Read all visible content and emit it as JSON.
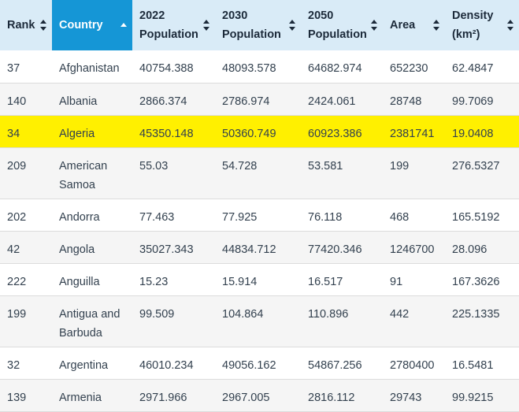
{
  "headers": {
    "rank": "Rank",
    "country": "Country",
    "pop2022_a": "2022",
    "pop2022_b": "Population",
    "pop2030_a": "2030",
    "pop2030_b": "Population",
    "pop2050_a": "2050",
    "pop2050_b": "Population",
    "area": "Area",
    "density_a": "Density",
    "density_b": "(km²)"
  },
  "rows": [
    {
      "rank": "37",
      "country": "Afghanistan",
      "pop2022": "40754.388",
      "pop2030": "48093.578",
      "pop2050": "64682.974",
      "area": "652230",
      "density": "62.4847"
    },
    {
      "rank": "140",
      "country": "Albania",
      "pop2022": "2866.374",
      "pop2030": "2786.974",
      "pop2050": "2424.061",
      "area": "28748",
      "density": "99.7069"
    },
    {
      "rank": "34",
      "country": "Algeria",
      "pop2022": "45350.148",
      "pop2030": "50360.749",
      "pop2050": "60923.386",
      "area": "2381741",
      "density": "19.0408"
    },
    {
      "rank": "209",
      "country": "American Samoa",
      "pop2022": "55.03",
      "pop2030": "54.728",
      "pop2050": "53.581",
      "area": "199",
      "density": "276.5327"
    },
    {
      "rank": "202",
      "country": "Andorra",
      "pop2022": "77.463",
      "pop2030": "77.925",
      "pop2050": "76.118",
      "area": "468",
      "density": "165.5192"
    },
    {
      "rank": "42",
      "country": "Angola",
      "pop2022": "35027.343",
      "pop2030": "44834.712",
      "pop2050": "77420.346",
      "area": "1246700",
      "density": "28.096"
    },
    {
      "rank": "222",
      "country": "Anguilla",
      "pop2022": "15.23",
      "pop2030": "15.914",
      "pop2050": "16.517",
      "area": "91",
      "density": "167.3626"
    },
    {
      "rank": "199",
      "country": "Antigua and Barbuda",
      "pop2022": "99.509",
      "pop2030": "104.864",
      "pop2050": "110.896",
      "area": "442",
      "density": "225.1335"
    },
    {
      "rank": "32",
      "country": "Argentina",
      "pop2022": "46010.234",
      "pop2030": "49056.162",
      "pop2050": "54867.256",
      "area": "2780400",
      "density": "16.5481"
    },
    {
      "rank": "139",
      "country": "Armenia",
      "pop2022": "2971.966",
      "pop2030": "2967.005",
      "pop2050": "2816.112",
      "area": "29743",
      "density": "99.9215"
    }
  ]
}
